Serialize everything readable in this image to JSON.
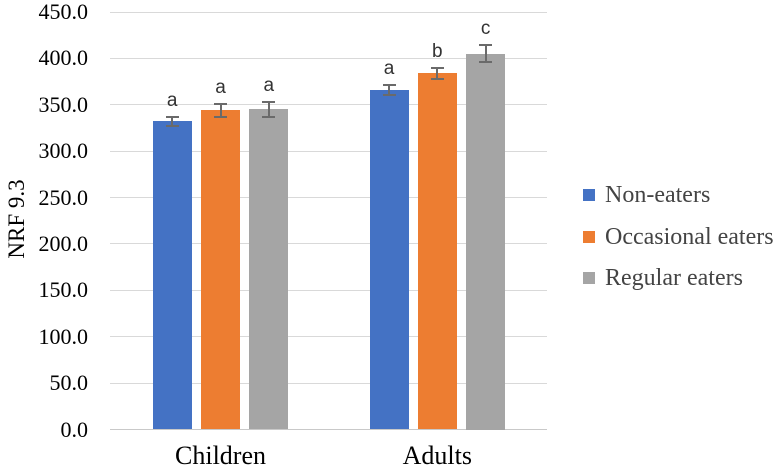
{
  "chart_data": {
    "type": "bar",
    "title": "",
    "ylabel": "NRF 9.3",
    "xlabel": "",
    "ylim": [
      0,
      450
    ],
    "ytick_step": 50,
    "yticks": [
      "0.0",
      "50.0",
      "100.0",
      "150.0",
      "200.0",
      "250.0",
      "300.0",
      "350.0",
      "400.0",
      "450.0"
    ],
    "categories": [
      "Children",
      "Adults"
    ],
    "series": [
      {
        "name": "Non-eaters",
        "color": "#4472C4",
        "values": [
          332,
          366
        ],
        "errors": [
          5,
          5
        ],
        "sig_letters": [
          "a",
          "a"
        ]
      },
      {
        "name": "Occasional eaters",
        "color": "#ED7D31",
        "values": [
          344,
          384
        ],
        "errors": [
          7,
          6
        ],
        "sig_letters": [
          "a",
          "b"
        ]
      },
      {
        "name": "Regular eaters",
        "color": "#A5A5A5",
        "values": [
          345,
          405
        ],
        "errors": [
          8,
          9
        ],
        "sig_letters": [
          "a",
          "c"
        ]
      }
    ],
    "grid": true,
    "legend_position": "right",
    "colors": {
      "gridline": "#D9D9D9",
      "baseline": "#C9C9C9",
      "error_bar": "#6A6A6A",
      "axis_text": "#000000",
      "legend_text": "#444444",
      "letter_text": "#333333",
      "background": "#FFFFFF"
    }
  }
}
